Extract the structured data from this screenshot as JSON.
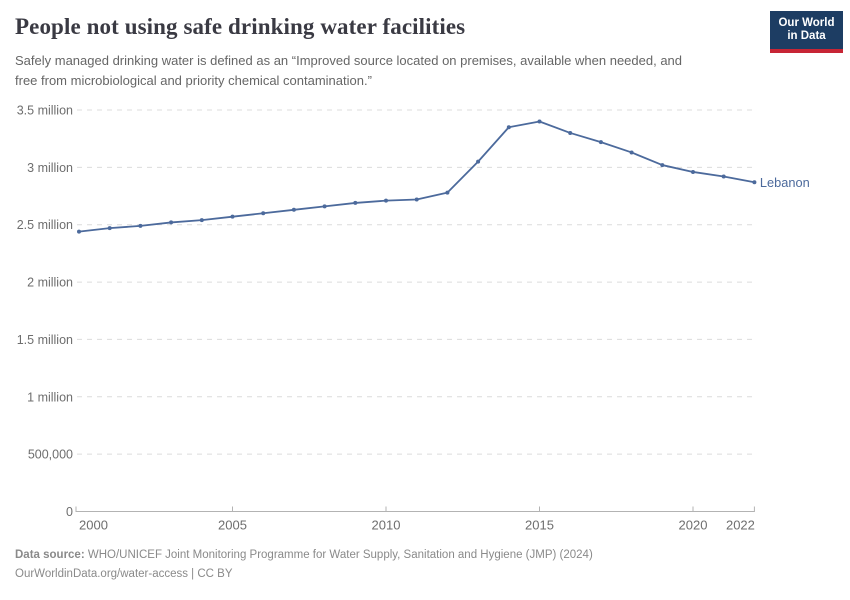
{
  "header": {
    "title": "People not using safe drinking water facilities",
    "subtitle": "Safely managed drinking water is defined as an “Improved source located on premises, available when needed, and free from microbiological and priority chemical contamination.”",
    "logo": {
      "line1": "Our World",
      "line2": "in Data",
      "bg_color": "#1d3d63",
      "accent_color": "#c72535"
    }
  },
  "chart_data": {
    "type": "line",
    "title": "People not using safe drinking water facilities",
    "xlabel": "",
    "ylabel": "",
    "x": [
      2000,
      2001,
      2002,
      2003,
      2004,
      2005,
      2006,
      2007,
      2008,
      2009,
      2010,
      2011,
      2012,
      2013,
      2014,
      2015,
      2016,
      2017,
      2018,
      2019,
      2020,
      2021,
      2022
    ],
    "series": [
      {
        "name": "Lebanon",
        "color": "#4c6a9c",
        "values": [
          2440000,
          2470000,
          2490000,
          2520000,
          2540000,
          2570000,
          2600000,
          2630000,
          2660000,
          2690000,
          2710000,
          2720000,
          2780000,
          3050000,
          3350000,
          3400000,
          3300000,
          3220000,
          3130000,
          3020000,
          2960000,
          2920000,
          2870000
        ]
      }
    ],
    "xlim": [
      2000,
      2022
    ],
    "ylim": [
      0,
      3500000
    ],
    "x_ticks": [
      2000,
      2005,
      2010,
      2015,
      2020,
      2022
    ],
    "y_ticks": [
      {
        "value": 0,
        "label": "0"
      },
      {
        "value": 500000,
        "label": "500,000"
      },
      {
        "value": 1000000,
        "label": "1 million"
      },
      {
        "value": 1500000,
        "label": "1.5 million"
      },
      {
        "value": 2000000,
        "label": "2 million"
      },
      {
        "value": 2500000,
        "label": "2.5 million"
      },
      {
        "value": 3000000,
        "label": "3 million"
      },
      {
        "value": 3500000,
        "label": "3.5 million"
      }
    ],
    "grid": "horizontal-dashed",
    "legend_position": "end-of-line"
  },
  "footer": {
    "data_source_label": "Data source:",
    "data_source_text": " WHO/UNICEF Joint Monitoring Programme for Water Supply, Sanitation and Hygiene (JMP) (2024)",
    "citation": "OurWorldinData.org/water-access | CC BY"
  }
}
